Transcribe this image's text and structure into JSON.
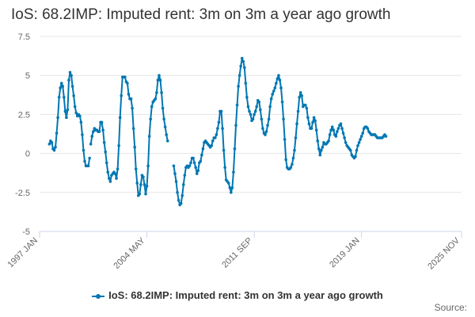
{
  "colors": {
    "series": "#0077b3",
    "grid": "#e6e6e6",
    "axis": "#ccd6eb"
  },
  "credits": "Source:",
  "chart_data": {
    "type": "line",
    "title": "IoS: 68.2IMP: Imputed rent: 3m on 3m a year ago growth",
    "xlabel": "",
    "ylabel": "",
    "ylim": [
      -5,
      7.5
    ],
    "yticks": [
      7.5,
      5,
      2.5,
      0,
      -2.5,
      -5
    ],
    "ytick_labels": [
      "7.5",
      "5",
      "2.5",
      "0",
      "-2.5",
      "-5"
    ],
    "x_range_months": [
      0,
      346
    ],
    "x_origin": "1997 JAN",
    "xticks": [
      {
        "label": "1997 JAN",
        "month": 0
      },
      {
        "label": "2004 MAY",
        "month": 88
      },
      {
        "label": "2011 SEP",
        "month": 176
      },
      {
        "label": "2019 JAN",
        "month": 264
      },
      {
        "label": "2025 NOV",
        "month": 346
      }
    ],
    "legend": "top-center below plot",
    "series": [
      {
        "name": "IoS: 68.2IMP: Imputed rent: 3m on 3m a year ago growth",
        "segments": [
          {
            "start_month": 8,
            "values": [
              0.6,
              0.8,
              0.7,
              0.3,
              0.2,
              0.4,
              1.3,
              2.3,
              3.6,
              4.2,
              4.5,
              4.3,
              3.6,
              2.7,
              2.3,
              2.8,
              4.7,
              5.2,
              5.0,
              4.3,
              3.7,
              3.0,
              2.6,
              2.4,
              2.5,
              2.4,
              2.0,
              1.2,
              0.2,
              -0.5,
              -0.8,
              -0.8,
              -0.8,
              -0.3
            ]
          },
          {
            "start_month": 42,
            "values": [
              0.6,
              1.1,
              1.4,
              1.6,
              1.5,
              1.5,
              1.4,
              1.4,
              2.0,
              2.0,
              1.5,
              0.7,
              0.1,
              -0.6,
              -1.2,
              -1.6,
              -1.8,
              -1.4,
              -1.3,
              -1.2,
              -1.3,
              -1.6,
              -1.0,
              0.5,
              2.3,
              3.7,
              4.9,
              4.9,
              4.9,
              4.6,
              4.5,
              3.8,
              3.5,
              3.5,
              2.9,
              1.6,
              0.4,
              -1.0,
              -1.9,
              -2.7,
              -2.6,
              -2.0,
              -1.4,
              -1.5,
              -2.0,
              -2.6,
              -2.1,
              -0.8,
              1.1,
              2.2,
              3.0,
              3.3,
              3.4,
              3.5,
              3.9,
              4.7,
              5.0,
              4.7,
              3.9,
              2.9,
              2.2,
              1.7,
              1.2,
              0.8
            ]
          },
          {
            "start_month": 110,
            "values": [
              -0.8,
              -1.3,
              -1.8,
              -2.5,
              -3.0,
              -3.3,
              -3.2,
              -2.7,
              -2.0,
              -1.4,
              -0.9,
              -0.8,
              -0.9,
              -0.8,
              -0.6,
              -0.3,
              -0.3,
              -0.6,
              -0.9,
              -1.3,
              -1.1,
              -0.6,
              -0.5,
              -0.1,
              0.3,
              0.7,
              0.8,
              0.7,
              0.6,
              0.5,
              0.4,
              0.5,
              0.8,
              1.0,
              1.0,
              1.2,
              1.6,
              2.0,
              2.7,
              2.7,
              1.6,
              0.2,
              -0.9,
              -1.7,
              -1.8,
              -1.9,
              -2.2,
              -2.5,
              -2.2,
              -1.2,
              0.3,
              1.8,
              3.1,
              4.3,
              5.0,
              5.6,
              6.1,
              5.9,
              5.5,
              4.5,
              3.6,
              3.0,
              2.7,
              2.5,
              2.1,
              2.2,
              2.5,
              2.7,
              3.0,
              3.4,
              3.3,
              2.8,
              2.2,
              1.6,
              1.3,
              1.2,
              1.4,
              1.8,
              2.2,
              3.0,
              3.5,
              3.8,
              4.0,
              4.2,
              4.5,
              4.8,
              5.0,
              4.7,
              4.2,
              3.3,
              2.2,
              0.9,
              -0.4,
              -0.9,
              -1.0,
              -1.0,
              -0.9,
              -0.7,
              -0.3,
              0.2,
              1.0,
              1.9,
              2.7,
              3.6,
              3.9,
              3.7,
              3.0,
              3.1,
              3.1,
              2.9,
              2.3,
              1.9,
              1.6,
              1.6,
              2.0,
              2.3,
              2.1,
              1.5,
              0.8,
              0.3,
              -0.1,
              0.2,
              0.4,
              0.7,
              0.6,
              0.6,
              0.7,
              0.8,
              1.2,
              1.5,
              1.7,
              1.5,
              1.2,
              1.1,
              1.4,
              1.6,
              1.8,
              1.9,
              1.6,
              1.3,
              1.0,
              0.7,
              0.5,
              0.4,
              0.3,
              0.2,
              -0.1,
              -0.2,
              -0.3,
              -0.2,
              0.2,
              0.5,
              0.7,
              0.9,
              1.1,
              1.3,
              1.6,
              1.7,
              1.7,
              1.6,
              1.4,
              1.3,
              1.2,
              1.2,
              1.2,
              1.2,
              1.1,
              1.0,
              1.0,
              1.0,
              1.0,
              1.0,
              1.1,
              1.2,
              1.1
            ]
          }
        ]
      }
    ]
  }
}
